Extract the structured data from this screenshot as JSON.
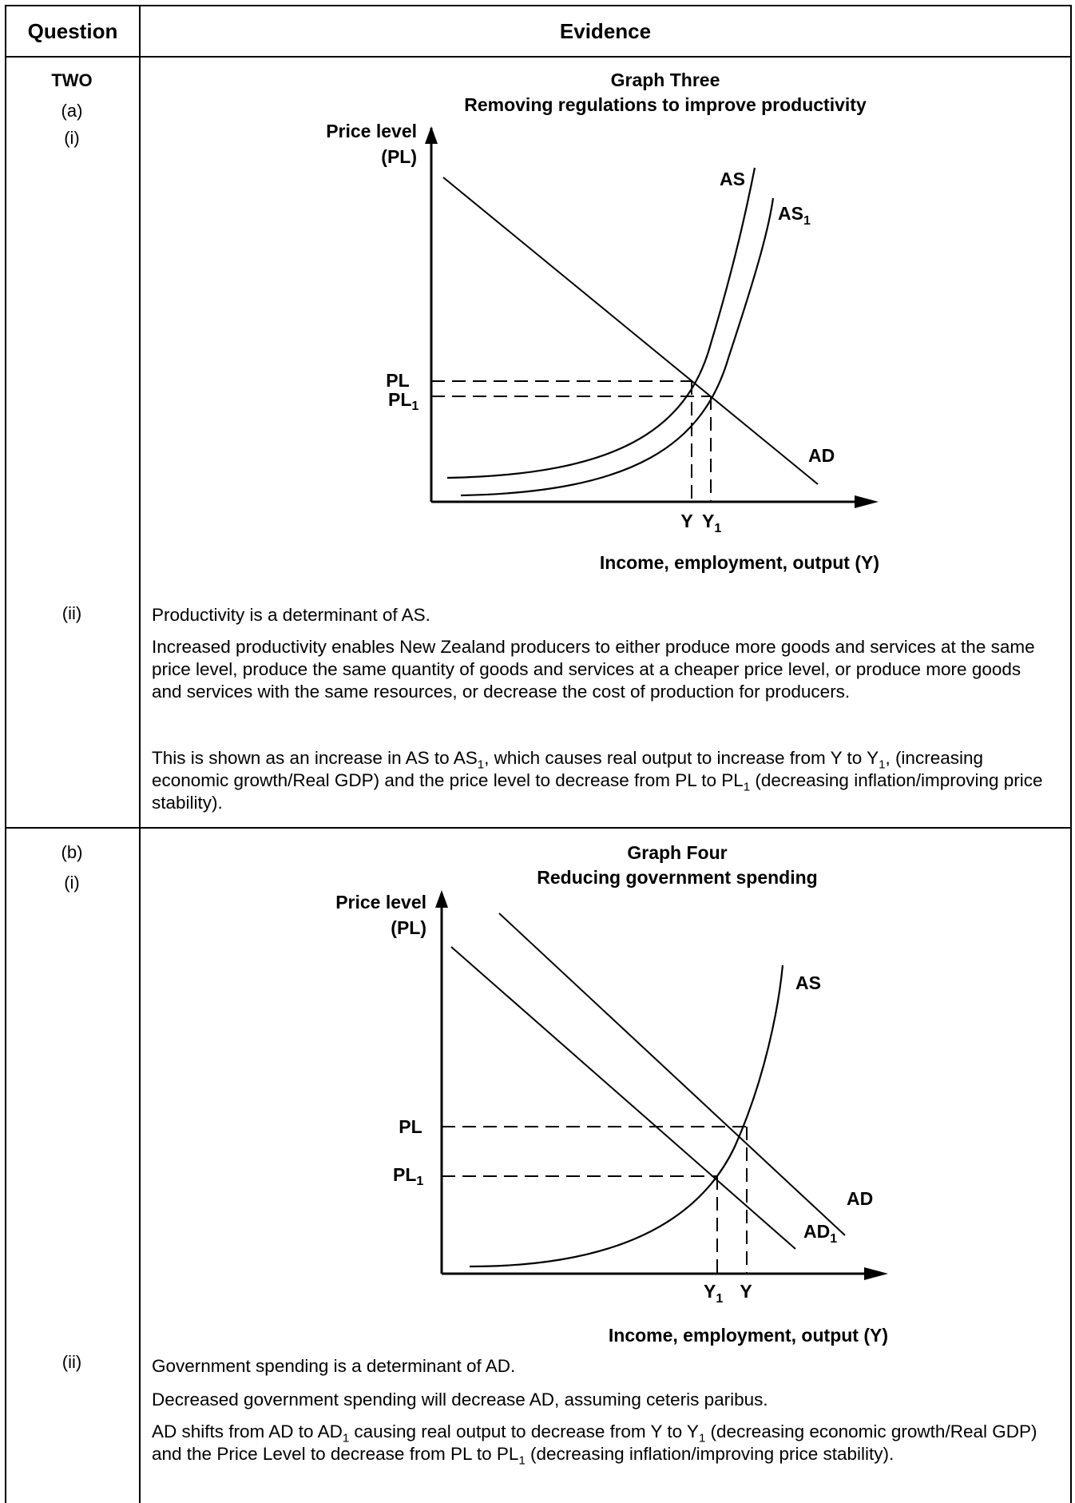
{
  "table": {
    "header_question": "Question",
    "header_evidence": "Evidence"
  },
  "q2": {
    "label": "TWO",
    "a": "(a)",
    "a_i": "(i)",
    "a_ii": "(ii)",
    "b": "(b)",
    "b_i": "(i)",
    "b_ii": "(ii)"
  },
  "graph3": {
    "title": "Graph Three",
    "subtitle": "Removing regulations to improve productivity",
    "ylabel_1": "Price level",
    "ylabel_2": "(PL)",
    "xlabel": "Income, employment, output (Y)",
    "as": "AS",
    "as1_base": "AS",
    "as1_sub": "1",
    "ad": "AD",
    "pl": "PL",
    "pl1_base": "PL",
    "pl1_sub": "1",
    "y": "Y",
    "y1_base": "Y",
    "y1_sub": "1"
  },
  "graph4": {
    "title": "Graph Four",
    "subtitle": "Reducing government spending",
    "ylabel_1": "Price level",
    "ylabel_2": "(PL)",
    "xlabel": "Income, employment, output (Y)",
    "as": "AS",
    "ad": "AD",
    "ad1_base": "AD",
    "ad1_sub": "1",
    "pl": "PL",
    "pl1_base": "PL",
    "pl1_sub": "1",
    "y": "Y",
    "y1_base": "Y",
    "y1_sub": "1"
  },
  "text_a": {
    "p1": "Productivity is a determinant of AS.",
    "p2": "Increased productivity enables New Zealand producers to either produce more goods and services at the same price level, produce the same quantity of goods and services at a cheaper price level, or produce more goods and services with the same resources, or decrease the cost of production for producers.",
    "p3_a": "This is shown as an increase in AS to AS",
    "p3_b": ", which causes real output to increase from Y to Y",
    "p3_c": ", (increasing economic growth/Real GDP) and the price level to decrease from PL to PL",
    "p3_d": " (decreasing inflation/improving price stability).",
    "sub": "1"
  },
  "text_b": {
    "p1": "Government spending is a determinant of AD.",
    "p2": "Decreased government spending will decrease AD, assuming ceteris paribus.",
    "p3_a": "AD shifts from AD to AD",
    "p3_b": " causing real output to decrease from Y to Y",
    "p3_c": " (decreasing economic growth/Real GDP) and the Price Level to decrease from PL to PL",
    "p3_d": " (decreasing inflation/improving price stability).",
    "sub": "1"
  }
}
